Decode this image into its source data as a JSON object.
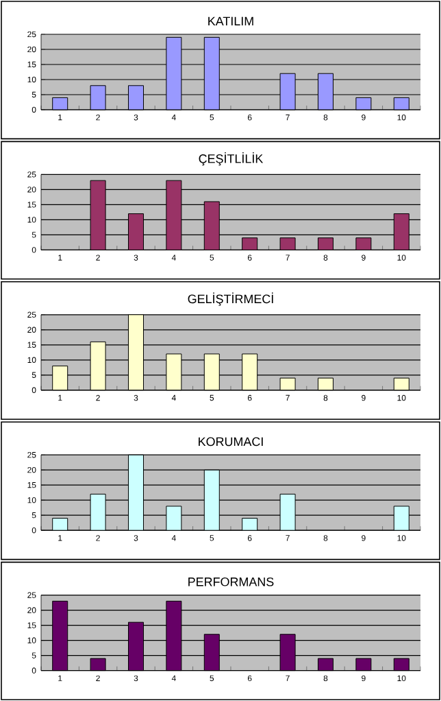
{
  "chart_data": [
    {
      "type": "bar",
      "title": "KATILIM",
      "categories": [
        "1",
        "2",
        "3",
        "4",
        "5",
        "6",
        "7",
        "8",
        "9",
        "10"
      ],
      "values": [
        4,
        8,
        8,
        24,
        24,
        null,
        12,
        12,
        4,
        4
      ],
      "color": "#9999ff",
      "ylim": [
        0,
        25
      ],
      "yticks": [
        0,
        5,
        10,
        15,
        20,
        25
      ],
      "grid": "y"
    },
    {
      "type": "bar",
      "title": "ÇEŞİTLİLİK",
      "categories": [
        "1",
        "2",
        "3",
        "4",
        "5",
        "6",
        "7",
        "8",
        "9",
        "10"
      ],
      "values": [
        null,
        23,
        12,
        23,
        16,
        4,
        4,
        4,
        4,
        12
      ],
      "color": "#993366",
      "ylim": [
        0,
        25
      ],
      "yticks": [
        0,
        5,
        10,
        15,
        20,
        25
      ],
      "grid": "y"
    },
    {
      "type": "bar",
      "title": "GELİŞTİRMECİ",
      "categories": [
        "1",
        "2",
        "3",
        "4",
        "5",
        "6",
        "7",
        "8",
        "9",
        "10"
      ],
      "values": [
        8,
        16,
        25,
        12,
        12,
        12,
        4,
        4,
        null,
        4
      ],
      "color": "#ffffcc",
      "ylim": [
        0,
        25
      ],
      "yticks": [
        0,
        5,
        10,
        15,
        20,
        25
      ],
      "grid": "y"
    },
    {
      "type": "bar",
      "title": "KORUMACI",
      "categories": [
        "1",
        "2",
        "3",
        "4",
        "5",
        "6",
        "7",
        "8",
        "9",
        "10"
      ],
      "values": [
        4,
        12,
        25,
        8,
        20,
        4,
        12,
        null,
        null,
        8
      ],
      "color": "#ccffff",
      "ylim": [
        0,
        25
      ],
      "yticks": [
        0,
        5,
        10,
        15,
        20,
        25
      ],
      "grid": "y"
    },
    {
      "type": "bar",
      "title": "PERFORMANS",
      "categories": [
        "1",
        "2",
        "3",
        "4",
        "5",
        "6",
        "7",
        "8",
        "9",
        "10"
      ],
      "values": [
        23,
        4,
        16,
        23,
        12,
        null,
        12,
        4,
        4,
        4
      ],
      "color": "#660066",
      "ylim": [
        0,
        25
      ],
      "yticks": [
        0,
        5,
        10,
        15,
        20,
        25
      ],
      "grid": "y"
    }
  ]
}
